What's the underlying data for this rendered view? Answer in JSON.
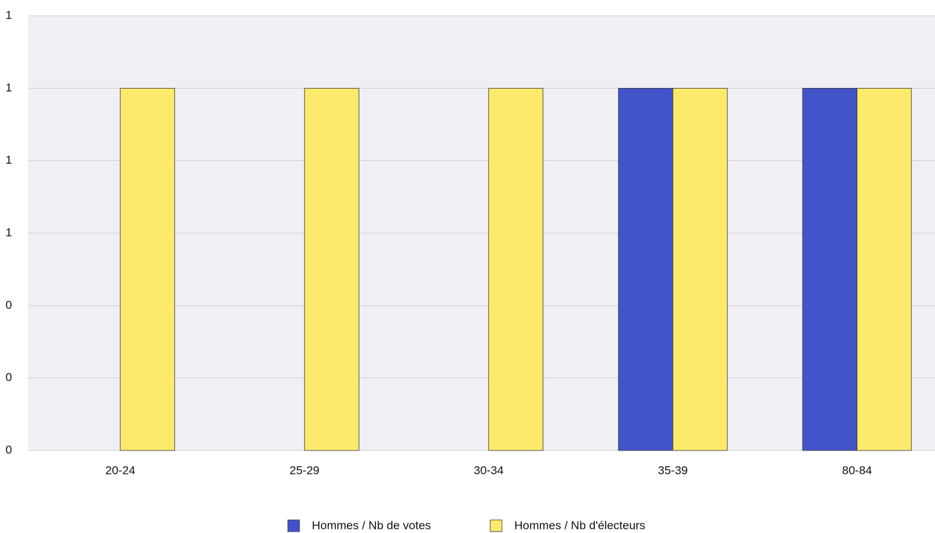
{
  "chart_data": {
    "type": "bar",
    "categories": [
      "20-24",
      "25-29",
      "30-34",
      "35-39",
      "80-84"
    ],
    "series": [
      {
        "name": "Hommes / Nb de votes",
        "color": "#4353c9",
        "values": [
          0,
          0,
          0,
          1,
          1
        ]
      },
      {
        "name": "Hommes / Nb d'électeurs",
        "color": "#fde96b",
        "values": [
          1,
          1,
          1,
          1,
          1
        ]
      }
    ],
    "ylim": [
      0,
      1.2
    ],
    "yticks": [
      {
        "value": 0,
        "label": "0"
      },
      {
        "value": 0.2,
        "label": "0"
      },
      {
        "value": 0.4,
        "label": "0"
      },
      {
        "value": 0.6,
        "label": "1"
      },
      {
        "value": 0.8,
        "label": "1"
      },
      {
        "value": 1.0,
        "label": "1"
      },
      {
        "value": 1.2,
        "label": "1"
      }
    ],
    "grid": true,
    "legend": "bottom"
  }
}
